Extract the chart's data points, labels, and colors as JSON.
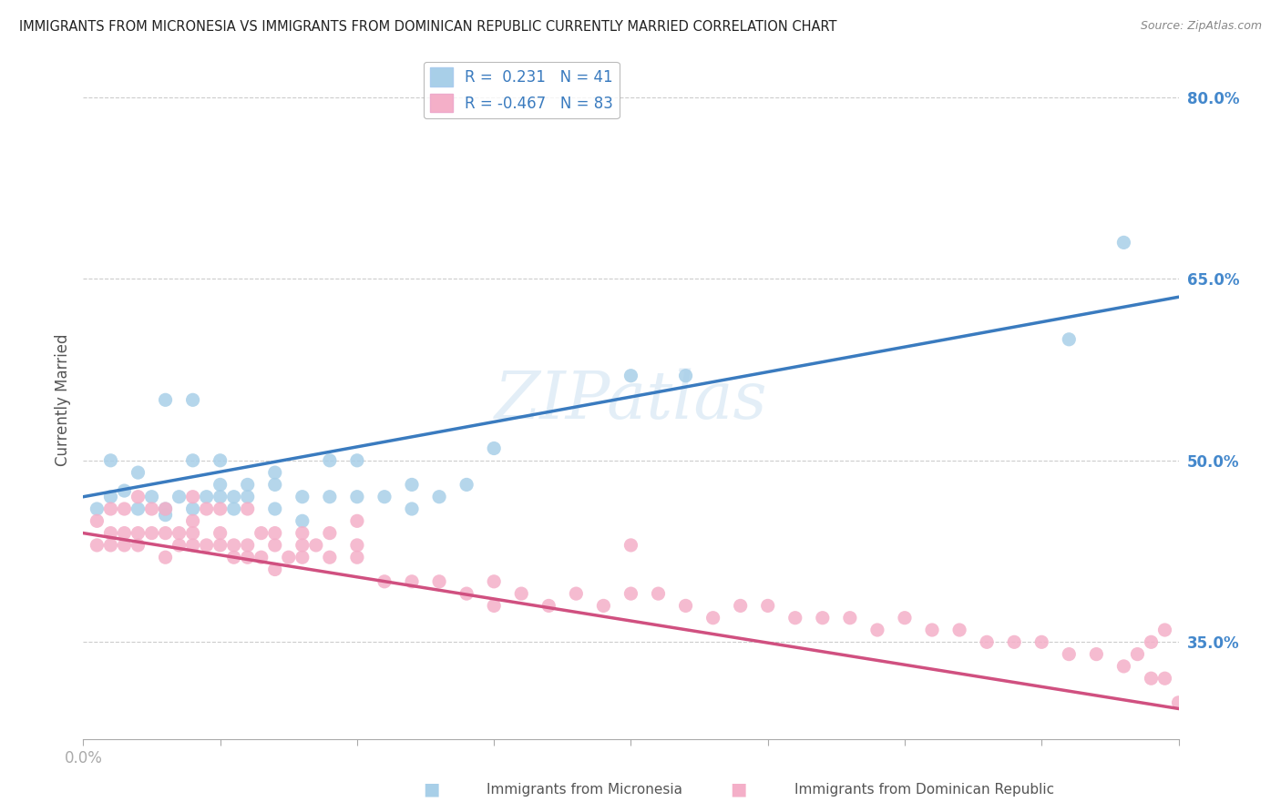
{
  "title": "IMMIGRANTS FROM MICRONESIA VS IMMIGRANTS FROM DOMINICAN REPUBLIC CURRENTLY MARRIED CORRELATION CHART",
  "source": "Source: ZipAtlas.com",
  "xlabel_blue": "Immigrants from Micronesia",
  "xlabel_pink": "Immigrants from Dominican Republic",
  "ylabel": "Currently Married",
  "xlim": [
    0.0,
    0.4
  ],
  "ylim": [
    0.27,
    0.83
  ],
  "yticks": [
    0.35,
    0.5,
    0.65,
    0.8
  ],
  "ytick_labels": [
    "35.0%",
    "50.0%",
    "65.0%",
    "80.0%"
  ],
  "xticks": [
    0.0,
    0.05,
    0.1,
    0.15,
    0.2,
    0.25,
    0.3,
    0.35,
    0.4
  ],
  "xtick_labels_shown": {
    "0.0": "0.0%"
  },
  "blue_color": "#a8cfe8",
  "pink_color": "#f4afc8",
  "blue_line_color": "#3a7bbf",
  "pink_line_color": "#d05080",
  "legend_r_blue": "0.231",
  "legend_n_blue": "41",
  "legend_r_pink": "-0.467",
  "legend_n_pink": "83",
  "watermark": "ZIPatlas",
  "blue_scatter_x": [
    0.005,
    0.01,
    0.01,
    0.015,
    0.02,
    0.02,
    0.025,
    0.03,
    0.03,
    0.03,
    0.035,
    0.04,
    0.04,
    0.04,
    0.045,
    0.05,
    0.05,
    0.05,
    0.055,
    0.055,
    0.06,
    0.06,
    0.07,
    0.07,
    0.07,
    0.08,
    0.08,
    0.09,
    0.09,
    0.1,
    0.1,
    0.11,
    0.12,
    0.12,
    0.13,
    0.14,
    0.15,
    0.2,
    0.22,
    0.36,
    0.38
  ],
  "blue_scatter_y": [
    0.46,
    0.47,
    0.5,
    0.475,
    0.46,
    0.49,
    0.47,
    0.46,
    0.455,
    0.55,
    0.47,
    0.46,
    0.5,
    0.55,
    0.47,
    0.47,
    0.48,
    0.5,
    0.46,
    0.47,
    0.47,
    0.48,
    0.46,
    0.48,
    0.49,
    0.45,
    0.47,
    0.47,
    0.5,
    0.47,
    0.5,
    0.47,
    0.46,
    0.48,
    0.47,
    0.48,
    0.51,
    0.57,
    0.57,
    0.6,
    0.68
  ],
  "pink_scatter_x": [
    0.005,
    0.005,
    0.01,
    0.01,
    0.01,
    0.015,
    0.015,
    0.015,
    0.02,
    0.02,
    0.02,
    0.025,
    0.025,
    0.03,
    0.03,
    0.03,
    0.035,
    0.035,
    0.04,
    0.04,
    0.04,
    0.04,
    0.045,
    0.045,
    0.05,
    0.05,
    0.05,
    0.055,
    0.055,
    0.06,
    0.06,
    0.06,
    0.065,
    0.065,
    0.07,
    0.07,
    0.07,
    0.075,
    0.08,
    0.08,
    0.08,
    0.085,
    0.09,
    0.09,
    0.1,
    0.1,
    0.1,
    0.11,
    0.12,
    0.13,
    0.14,
    0.15,
    0.15,
    0.16,
    0.17,
    0.18,
    0.19,
    0.2,
    0.2,
    0.21,
    0.22,
    0.23,
    0.24,
    0.25,
    0.26,
    0.27,
    0.28,
    0.29,
    0.3,
    0.31,
    0.32,
    0.33,
    0.34,
    0.35,
    0.36,
    0.37,
    0.38,
    0.39,
    0.385,
    0.39,
    0.395,
    0.4,
    0.395
  ],
  "pink_scatter_y": [
    0.43,
    0.45,
    0.43,
    0.44,
    0.46,
    0.43,
    0.44,
    0.46,
    0.43,
    0.44,
    0.47,
    0.44,
    0.46,
    0.42,
    0.44,
    0.46,
    0.43,
    0.44,
    0.43,
    0.44,
    0.45,
    0.47,
    0.43,
    0.46,
    0.43,
    0.44,
    0.46,
    0.42,
    0.43,
    0.42,
    0.43,
    0.46,
    0.42,
    0.44,
    0.41,
    0.43,
    0.44,
    0.42,
    0.42,
    0.43,
    0.44,
    0.43,
    0.42,
    0.44,
    0.42,
    0.43,
    0.45,
    0.4,
    0.4,
    0.4,
    0.39,
    0.38,
    0.4,
    0.39,
    0.38,
    0.39,
    0.38,
    0.39,
    0.43,
    0.39,
    0.38,
    0.37,
    0.38,
    0.38,
    0.37,
    0.37,
    0.37,
    0.36,
    0.37,
    0.36,
    0.36,
    0.35,
    0.35,
    0.35,
    0.34,
    0.34,
    0.33,
    0.32,
    0.34,
    0.35,
    0.36,
    0.3,
    0.32
  ]
}
